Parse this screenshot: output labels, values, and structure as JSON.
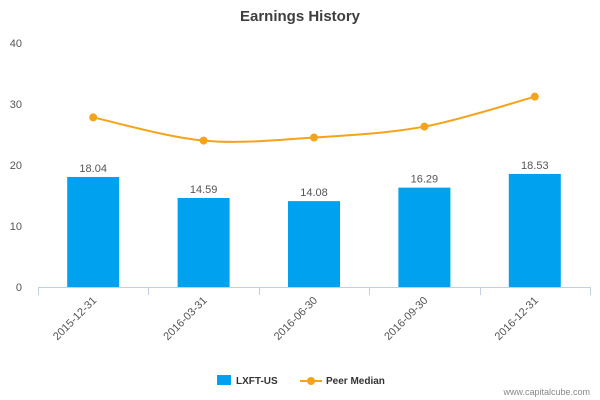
{
  "chart_data": {
    "type": "bar",
    "title": "Earnings History",
    "xlabel": "",
    "ylabel": "",
    "categories": [
      "2015-12-31",
      "2016-03-31",
      "2016-06-30",
      "2016-09-30",
      "2016-12-31"
    ],
    "ylim": [
      0,
      40
    ],
    "yticks": [
      "0",
      "10",
      "20",
      "30",
      "40"
    ],
    "grid": false,
    "legend_position": "bottom",
    "series": [
      {
        "name": "LXFT-US",
        "type": "bar",
        "values": [
          18.04,
          14.59,
          14.08,
          16.29,
          18.53
        ],
        "labels": [
          "18.04",
          "14.59",
          "14.08",
          "16.29",
          "18.53"
        ],
        "color": "#00a2f0"
      },
      {
        "name": "Peer Median",
        "type": "line",
        "smooth": true,
        "values": [
          27.8,
          24.0,
          24.5,
          26.3,
          31.2
        ],
        "color": "#f5a31a"
      }
    ]
  },
  "credit": "www.capitalcube.com"
}
